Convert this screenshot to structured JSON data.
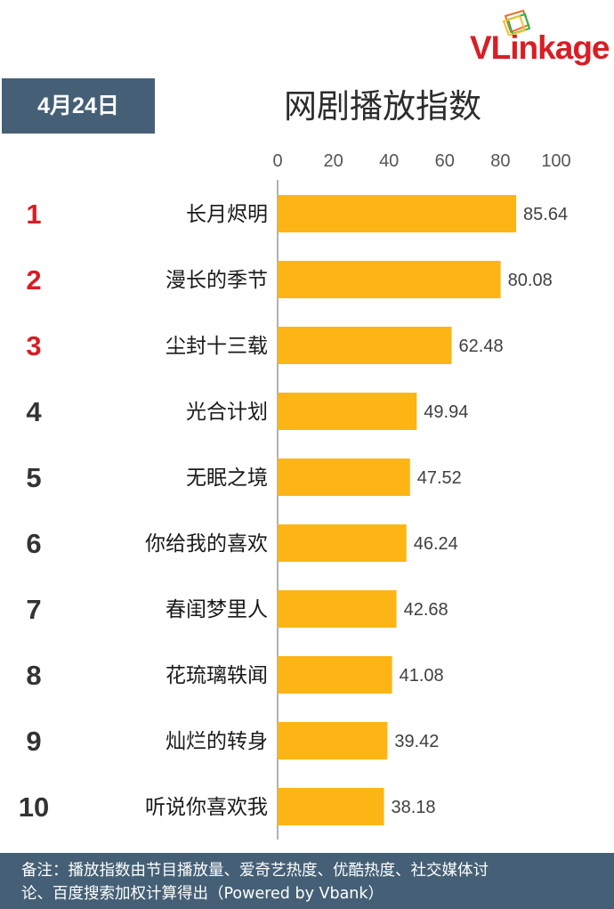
{
  "logo": {
    "text": "VLinkage"
  },
  "date_badge": "4月24日",
  "title": "网剧播放指数",
  "chart_data": {
    "type": "bar",
    "orientation": "horizontal",
    "title": "网剧播放指数",
    "xlim": [
      0,
      100
    ],
    "ticks": [
      0,
      20,
      40,
      60,
      80,
      100
    ],
    "ranks": [
      "1",
      "2",
      "3",
      "4",
      "5",
      "6",
      "7",
      "8",
      "9",
      "10"
    ],
    "categories": [
      "长月烬明",
      "漫长的季节",
      "尘封十三载",
      "光合计划",
      "无眠之境",
      "你给我的喜欢",
      "春闺梦里人",
      "花琉璃轶闻",
      "灿烂的转身",
      "听说你喜欢我"
    ],
    "values": [
      85.64,
      80.08,
      62.48,
      49.94,
      47.52,
      46.24,
      42.68,
      41.08,
      39.42,
      38.18
    ],
    "value_labels": [
      "85.64",
      "80.08",
      "62.48",
      "49.94",
      "47.52",
      "46.24",
      "42.68",
      "41.08",
      "39.42",
      "38.18"
    ],
    "colors": {
      "bar": "#FDB515",
      "rank_top3": "#D81E25",
      "rank_other": "#333333"
    }
  },
  "footer": {
    "line1": "备注：播放指数由节目播放量、爱奇艺热度、优酷热度、社交媒体讨",
    "line2": "论、百度搜索加权计算得出（Powered by Vbank）"
  }
}
